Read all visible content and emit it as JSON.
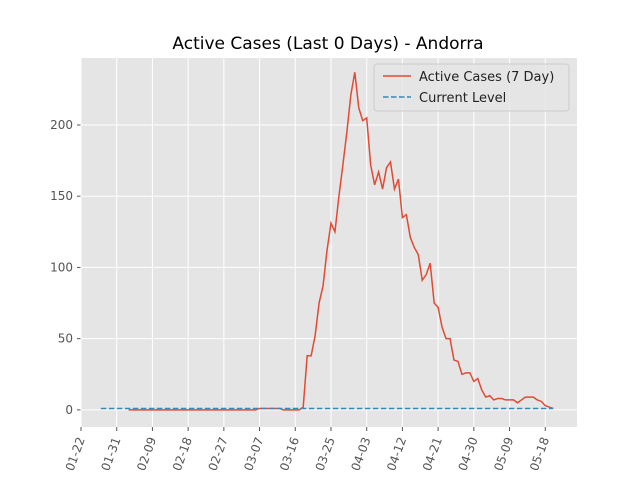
{
  "chart_data": {
    "type": "line",
    "title": "Active Cases (Last 0 Days) - Andorra",
    "xlim": [
      0,
      125
    ],
    "ylim": [
      -12,
      247
    ],
    "xticks": [
      {
        "value": 0,
        "label": "01-22"
      },
      {
        "value": 9,
        "label": "01-31"
      },
      {
        "value": 18,
        "label": "02-09"
      },
      {
        "value": 27,
        "label": "02-18"
      },
      {
        "value": 36,
        "label": "02-27"
      },
      {
        "value": 45,
        "label": "03-07"
      },
      {
        "value": 54,
        "label": "03-16"
      },
      {
        "value": 63,
        "label": "03-25"
      },
      {
        "value": 72,
        "label": "04-03"
      },
      {
        "value": 81,
        "label": "04-12"
      },
      {
        "value": 90,
        "label": "04-21"
      },
      {
        "value": 99,
        "label": "04-30"
      },
      {
        "value": 108,
        "label": "05-09"
      },
      {
        "value": 117,
        "label": "05-18"
      }
    ],
    "yticks": [
      0,
      50,
      100,
      150,
      200
    ],
    "grid": true,
    "legend": "upper right",
    "series": [
      {
        "name": "Active Cases (7 Day)",
        "color": "#E24A33",
        "dash": false,
        "x": [
          12,
          13,
          14,
          15,
          16,
          17,
          18,
          19,
          20,
          21,
          22,
          23,
          24,
          25,
          26,
          27,
          28,
          29,
          30,
          31,
          32,
          33,
          34,
          35,
          36,
          37,
          38,
          39,
          40,
          41,
          42,
          43,
          44,
          45,
          46,
          47,
          48,
          49,
          50,
          51,
          52,
          53,
          54,
          55,
          56,
          57,
          58,
          59,
          60,
          61,
          62,
          63,
          64,
          65,
          66,
          67,
          68,
          69,
          70,
          71,
          72,
          73,
          74,
          75,
          76,
          77,
          78,
          79,
          80,
          81,
          82,
          83,
          84,
          85,
          86,
          87,
          88,
          89,
          90,
          91,
          92,
          93,
          94,
          95,
          96,
          97,
          98,
          99,
          100,
          101,
          102,
          103,
          104,
          105,
          106,
          107,
          108,
          109,
          110,
          111,
          112,
          113,
          114,
          115,
          116,
          117,
          118,
          119
        ],
        "values": [
          0,
          0,
          0,
          0,
          0,
          0,
          0,
          0,
          0,
          0,
          0,
          0,
          0,
          0,
          0,
          0,
          0,
          0,
          0,
          0,
          0,
          0,
          0,
          0,
          0,
          0,
          0,
          0,
          0,
          0,
          0,
          0,
          0,
          1,
          1,
          1,
          1,
          1,
          1,
          0,
          0,
          0,
          0,
          0,
          2,
          38,
          38,
          52,
          75,
          87,
          112,
          131,
          125,
          150,
          172,
          195,
          221,
          237,
          212,
          203,
          205,
          172,
          158,
          167,
          155,
          170,
          174,
          155,
          162,
          135,
          137,
          121,
          114,
          109,
          91,
          95,
          103,
          75,
          72,
          58,
          50,
          50,
          35,
          34,
          25,
          26,
          26,
          20,
          22,
          14,
          9,
          10,
          7,
          8,
          8,
          7,
          7,
          7,
          5,
          7,
          9,
          9,
          9,
          7,
          6,
          3,
          2,
          1
        ]
      },
      {
        "name": "Current Level",
        "color": "#348ABD",
        "dash": true,
        "x": [
          5,
          119
        ],
        "values": [
          1,
          1
        ]
      }
    ]
  }
}
